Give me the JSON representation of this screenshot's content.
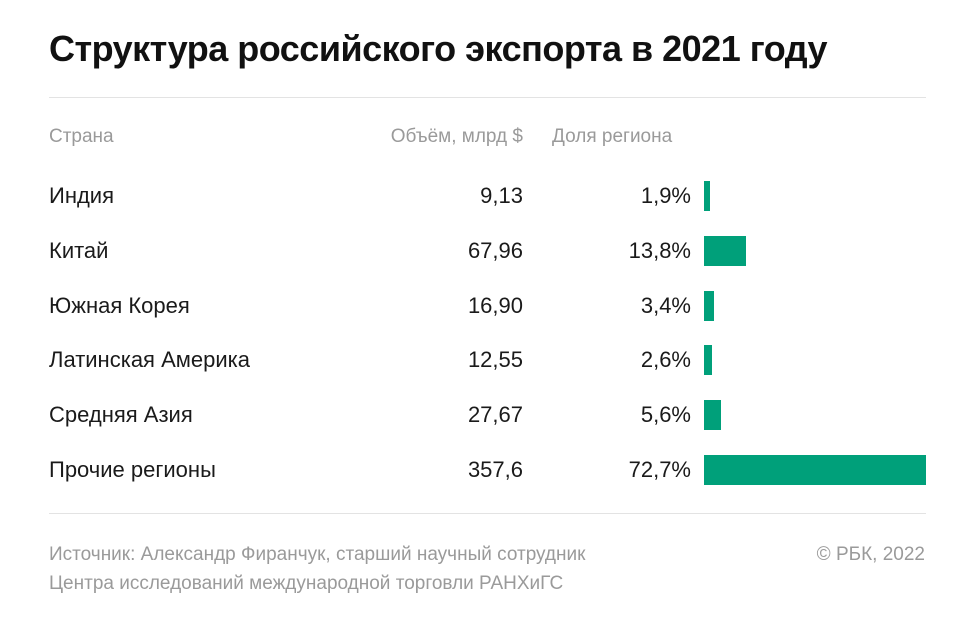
{
  "title": "Структура российского экспорта в 2021 году",
  "headers": {
    "country": "Страна",
    "volume": "Объём, млрд $",
    "share": "Доля региона"
  },
  "colors": {
    "bar": "#00a07a"
  },
  "chart_data": {
    "type": "table",
    "columns": [
      "Страна",
      "Объём, млрд $",
      "Доля региона"
    ],
    "rows": [
      {
        "country": "Индия",
        "volume": "9,13",
        "share": "1,9%",
        "share_value": 1.9
      },
      {
        "country": "Китай",
        "volume": "67,96",
        "share": "13,8%",
        "share_value": 13.8
      },
      {
        "country": "Южная Корея",
        "volume": "16,90",
        "share": "3,4%",
        "share_value": 3.4
      },
      {
        "country": "Латинская Америка",
        "volume": "12,55",
        "share": "2,6%",
        "share_value": 2.6
      },
      {
        "country": "Средняя Азия",
        "volume": "27,67",
        "share": "5,6%",
        "share_value": 5.6
      },
      {
        "country": "Прочие регионы",
        "volume": "357,6",
        "share": "72,7%",
        "share_value": 72.7
      }
    ]
  },
  "footer": {
    "source_line1": "Источник: Александр Фиранчук, старший научный сотрудник",
    "source_line2": "Центра исследований международной торговли РАНХиГС",
    "copyright": "© РБК, 2022"
  }
}
